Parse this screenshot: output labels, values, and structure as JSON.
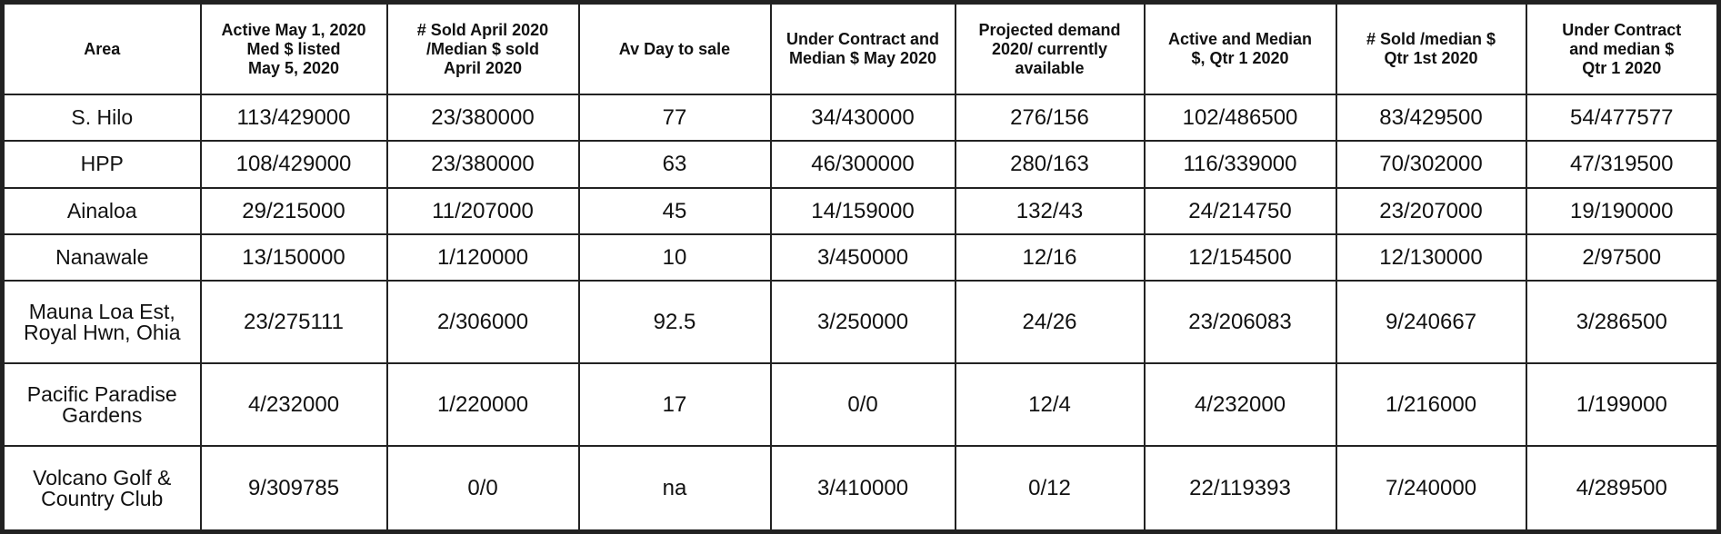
{
  "table": {
    "headers": [
      [
        "Area"
      ],
      [
        "Active May 1, 2020",
        "Med $ listed",
        "May 5, 2020"
      ],
      [
        "# Sold April 2020",
        "/Median $ sold",
        "April 2020"
      ],
      [
        "Av Day to sale"
      ],
      [
        "Under Contract and",
        "Median $ May 2020"
      ],
      [
        "Projected demand",
        "2020/ currently",
        "available"
      ],
      [
        "Active and Median",
        "$, Qtr 1 2020"
      ],
      [
        "# Sold /median $",
        "Qtr 1st 2020"
      ],
      [
        "Under Contract",
        "and median $",
        "Qtr 1 2020"
      ]
    ],
    "rows": [
      {
        "area": [
          "S. Hilo"
        ],
        "cells": [
          "113/429000",
          "23/380000",
          "77",
          "34/430000",
          "276/156",
          "102/486500",
          "83/429500",
          "54/477577"
        ]
      },
      {
        "area": [
          "HPP"
        ],
        "cells": [
          "108/429000",
          "23/380000",
          "63",
          "46/300000",
          "280/163",
          "116/339000",
          "70/302000",
          "47/319500"
        ]
      },
      {
        "area": [
          "Ainaloa"
        ],
        "cells": [
          "29/215000",
          "11/207000",
          "45",
          "14/159000",
          "132/43",
          "24/214750",
          "23/207000",
          "19/190000"
        ]
      },
      {
        "area": [
          "Nanawale"
        ],
        "cells": [
          "13/150000",
          "1/120000",
          "10",
          "3/450000",
          "12/16",
          "12/154500",
          "12/130000",
          "2/97500"
        ]
      },
      {
        "area": [
          "Mauna Loa Est,",
          "Royal Hwn, Ohia"
        ],
        "cells": [
          "23/275111",
          "2/306000",
          "92.5",
          "3/250000",
          "24/26",
          "23/206083",
          "9/240667",
          "3/286500"
        ]
      },
      {
        "area": [
          "Pacific Paradise",
          "Gardens"
        ],
        "cells": [
          "4/232000",
          "1/220000",
          "17",
          "0/0",
          "12/4",
          "4/232000",
          "1/216000",
          "1/199000"
        ]
      },
      {
        "area": [
          "Volcano Golf &",
          "Country Club"
        ],
        "cells": [
          "9/309785",
          "0/0",
          "na",
          "3/410000",
          "0/12",
          "22/119393",
          "7/240000",
          "4/289500"
        ]
      }
    ]
  }
}
